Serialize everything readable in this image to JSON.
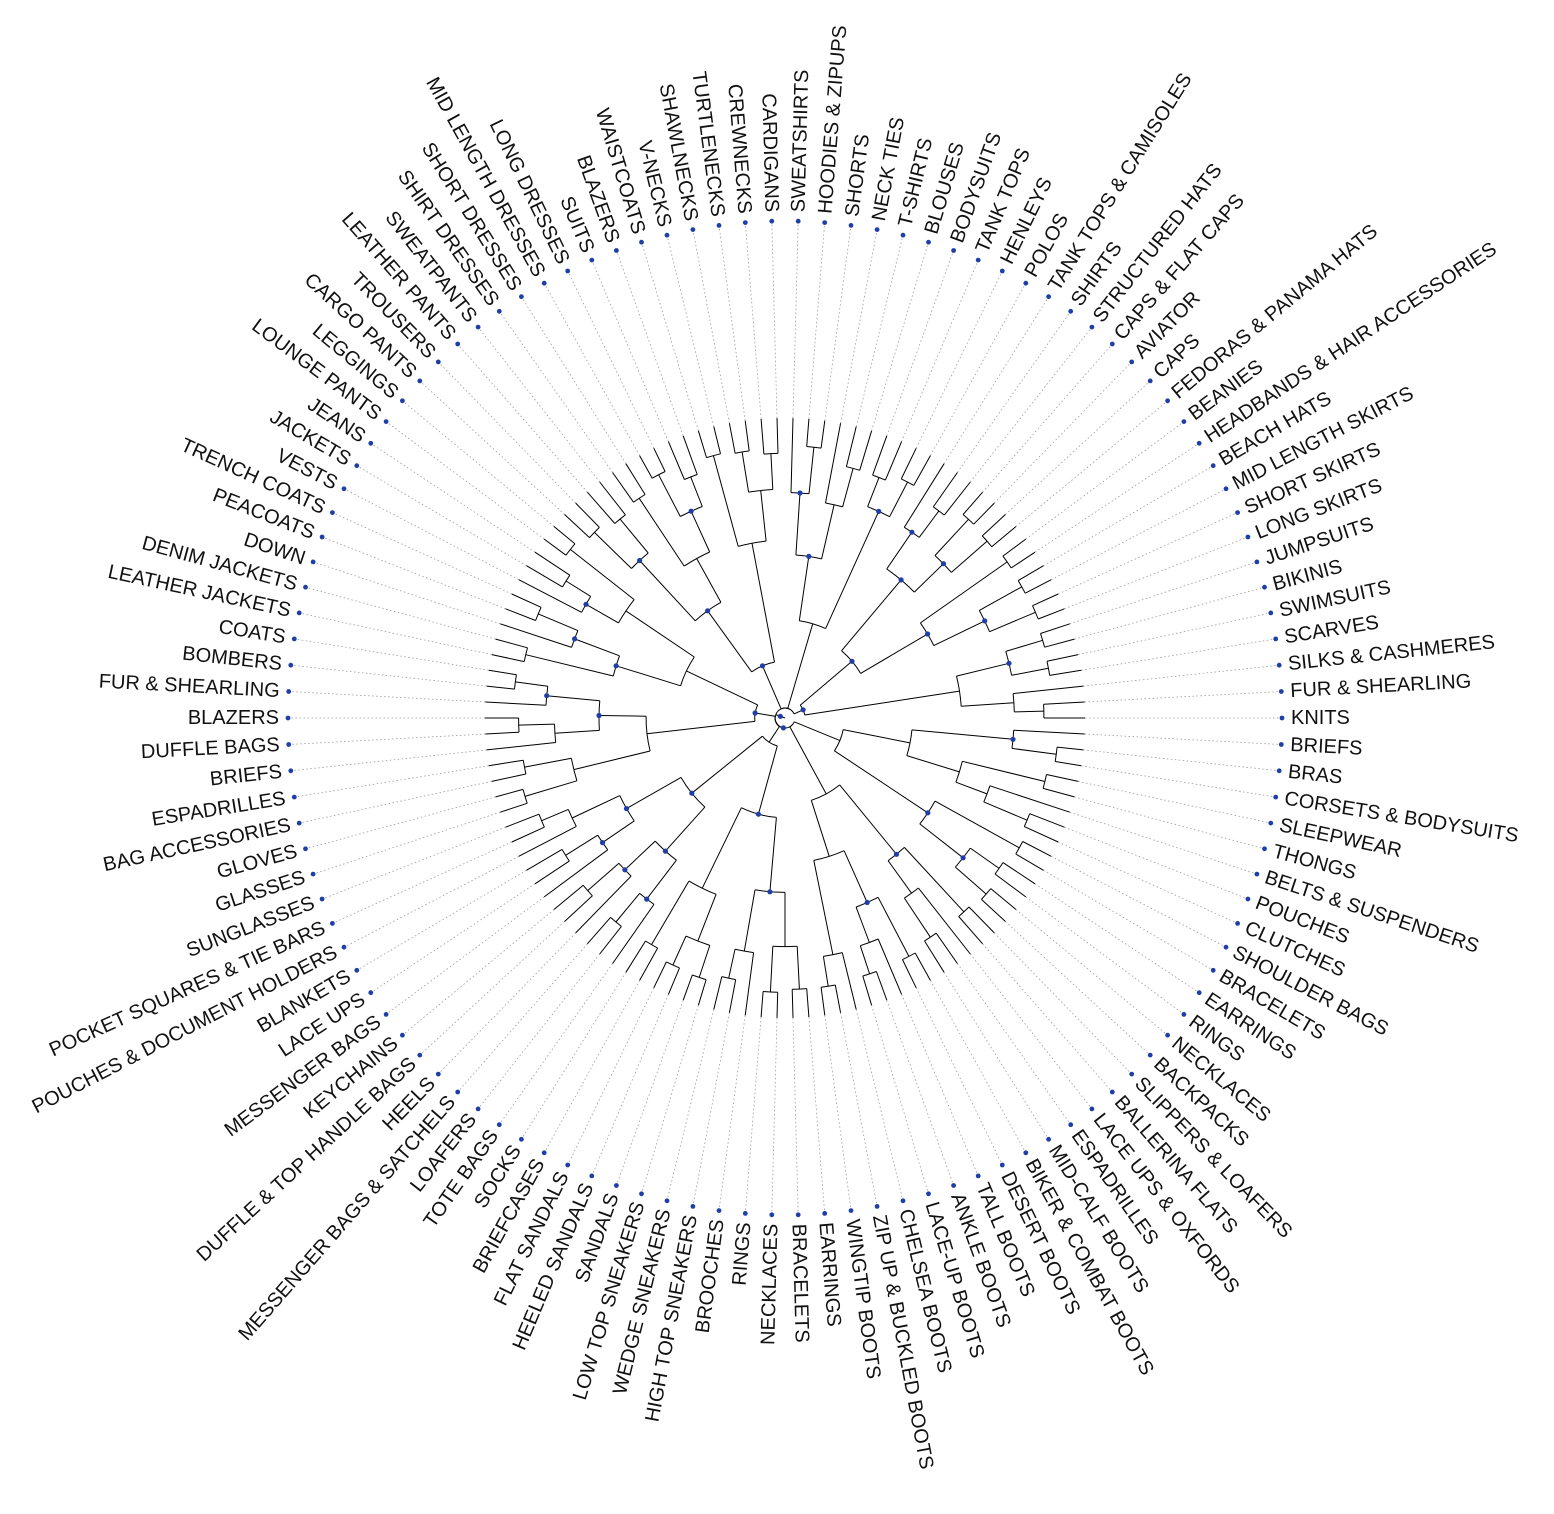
{
  "colors": {
    "branch": "#000000",
    "node": "#1f3fa8",
    "guide": "#9a9a9a",
    "text": "#111111"
  },
  "leaves": [
    "KNITS",
    "FUR & SHEARLING",
    "SILKS & CASHMERES",
    "SCARVES",
    "SWIMSUITS",
    "BIKINIS",
    "JUMPSUITS",
    "LONG SKIRTS",
    "SHORT SKIRTS",
    "MID LENGTH SKIRTS",
    "BEACH HATS",
    "HEADBANDS & HAIR ACCESSORIES",
    "BEANIES",
    "FEDORAS & PANAMA HATS",
    "CAPS",
    "AVIATOR",
    "CAPS & FLAT CAPS",
    "STRUCTURED HATS",
    "SHIRTS",
    "TANK TOPS & CAMISOLES",
    "POLOS",
    "HENLEYS",
    "TANK TOPS",
    "BODYSUITS",
    "BLOUSES",
    "T-SHIRTS",
    "NECK TIES",
    "SHORTS",
    "HOODIES & ZIPUPS",
    "SWEATSHIRTS",
    "CARDIGANS",
    "CREWNECKS",
    "TURTLENECKS",
    "SHAWLNECKS",
    "V-NECKS",
    "WAISTCOATS",
    "BLAZERS",
    "SUITS",
    "LONG DRESSES",
    "MID LENGTH DRESSES",
    "SHORT DRESSES",
    "SHIRT DRESSES",
    "SWEATPANTS",
    "LEATHER PANTS",
    "TROUSERS",
    "CARGO PANTS",
    "LEGGINGS",
    "LOUNGE PANTS",
    "JEANS",
    "JACKETS",
    "VESTS",
    "TRENCH COATS",
    "PEACOATS",
    "DOWN",
    "DENIM JACKETS",
    "LEATHER JACKETS",
    "COATS",
    "BOMBERS",
    "FUR & SHEARLING",
    "BLAZERS",
    "DUFFLE BAGS",
    "BRIEFS",
    "ESPADRILLES",
    "BAG ACCESSORIES",
    "GLOVES",
    "GLASSES",
    "SUNGLASSES",
    "POCKET SQUARES & TIE BARS",
    "POUCHES & DOCUMENT HOLDERS",
    "BLANKETS",
    "LACE UPS",
    "MESSENGER BAGS",
    "KEYCHAINS",
    "DUFFLE & TOP HANDLE BAGS",
    "HEELS",
    "MESSENGER BAGS & SATCHELS",
    "LOAFERS",
    "TOTE BAGS",
    "SOCKS",
    "BRIEFCASES",
    "FLAT SANDALS",
    "HEELED SANDALS",
    "SANDALS",
    "LOW TOP SNEAKERS",
    "WEDGE SNEAKERS",
    "HIGH TOP SNEAKERS",
    "BROOCHES",
    "RINGS",
    "NECKLACES",
    "BRACELETS",
    "EARRINGS",
    "WINGTIP BOOTS",
    "ZIP UP & BUCKLED BOOTS",
    "CHELSEA BOOTS",
    "LACE-UP BOOTS",
    "ANKLE BOOTS",
    "TALL BOOTS",
    "DESERT BOOTS",
    "BIKER & COMBAT BOOTS",
    "MID-CALF BOOTS",
    "ESPADRILLES",
    "LACE UPS & OXFORDS",
    "BALLERINA FLATS",
    "SLIPPERS & LOAFERS",
    "BACKPACKS",
    "NECKLACES",
    "RINGS",
    "EARRINGS",
    "BRACELETS",
    "SHOULDER BAGS",
    "CLUTCHES",
    "POUCHES",
    "BELTS & SUSPENDERS",
    "THONGS",
    "SLEEPWEAR",
    "CORSETS & BODYSUITS",
    "BRAS",
    "BRIEFS"
  ]
}
